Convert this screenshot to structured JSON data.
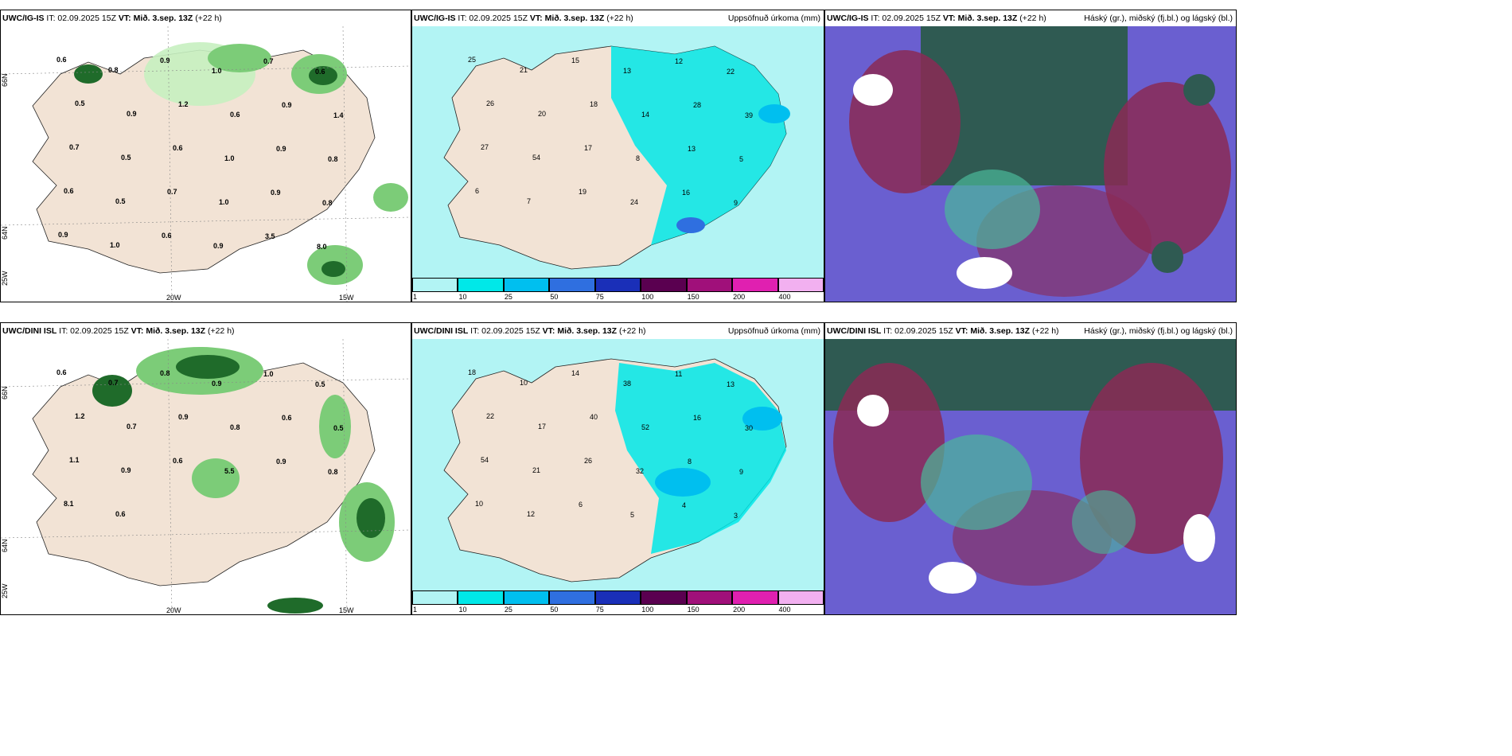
{
  "panels": {
    "p1": {
      "model": "UWC/IG-IS",
      "it": "IT: 02.09.2025 15Z",
      "vt_label": "VT:",
      "vt": "Mið. 3.sep. 13Z",
      "lead": "(+22 h)",
      "right": ""
    },
    "p2": {
      "model": "UWC/IG-IS",
      "it": "IT: 02.09.2025 15Z",
      "vt_label": "VT:",
      "vt": "Mið. 3.sep. 13Z",
      "lead": "(+22 h)",
      "right": "Uppsöfnuð úrkoma (mm)"
    },
    "p3": {
      "model": "UWC/IG-IS",
      "it": "IT: 02.09.2025 15Z",
      "vt_label": "VT:",
      "vt": "Mið. 3.sep. 13Z",
      "lead": "(+22 h)",
      "right": "Háský (gr.), miðský (fj.bl.) og lágský (bl.)"
    },
    "p4": {
      "model": "UWC/DINI ISL",
      "it": "IT: 02.09.2025 15Z",
      "vt_label": "VT:",
      "vt": "Mið. 3.sep. 13Z",
      "lead": "(+22 h)",
      "right": ""
    },
    "p5": {
      "model": "UWC/DINI ISL",
      "it": "IT: 02.09.2025 15Z",
      "vt_label": "VT:",
      "vt": "Mið. 3.sep. 13Z",
      "lead": "(+22 h)",
      "right": "Uppsöfnuð úrkoma (mm)"
    },
    "p6": {
      "model": "UWC/DINI ISL",
      "it": "IT: 02.09.2025 15Z",
      "vt_label": "VT:",
      "vt": "Mið. 3.sep. 13Z",
      "lead": "(+22 h)",
      "right": "Háský (gr.), miðský (fj.bl.) og lágský (bl.)"
    }
  },
  "grid_labels": {
    "lat66": "66N",
    "lat64": "64N",
    "lon25": "25W",
    "lon20": "20W",
    "lon15": "15W"
  },
  "colorbar": {
    "ticks": [
      "1",
      "10",
      "25",
      "50",
      "75",
      "100",
      "150",
      "200",
      "400"
    ],
    "colors": [
      "#b2f4f4",
      "#00e8e8",
      "#00bfef",
      "#2f6fe0",
      "#1a2fb8",
      "#5a0050",
      "#a0107a",
      "#e020b0",
      "#f2b0f0"
    ]
  },
  "map_colors": {
    "land": "#f2e3d5",
    "sea": "#ffffff",
    "precip_light": "#c7efc0",
    "precip_mid": "#7ccc78",
    "precip_dark": "#1f6b2a",
    "rain_light": "#b2f4f4",
    "rain_mid": "#00e8e8",
    "cloud_high": "#2f5a52",
    "cloud_mid": "#8a2a55",
    "cloud_low": "#6a5fd0"
  },
  "labels": {
    "p1": [
      "0.6",
      "0.8",
      "0.9",
      "1.0",
      "0.7",
      "0.6",
      "0.5",
      "0.9",
      "1.2",
      "0.6",
      "0.9",
      "1.4",
      "0.7",
      "0.5",
      "0.6",
      "1.0",
      "0.9",
      "0.8",
      "0.6",
      "0.5",
      "0.7",
      "1.0",
      "0.9",
      "0.8",
      "0.9",
      "1.0",
      "0.6",
      "0.9",
      "3.5",
      "8.0"
    ],
    "p2": [
      "25",
      "21",
      "15",
      "13",
      "12",
      "22",
      "26",
      "20",
      "18",
      "14",
      "28",
      "39",
      "27",
      "54",
      "17",
      "8",
      "13",
      "5",
      "6",
      "7",
      "19",
      "24",
      "16",
      "9"
    ],
    "p4": [
      "0.6",
      "0.7",
      "0.8",
      "0.9",
      "1.0",
      "0.5",
      "1.2",
      "0.7",
      "0.9",
      "0.8",
      "0.6",
      "0.5",
      "1.1",
      "0.9",
      "0.6",
      "5.5",
      "0.9",
      "0.8",
      "8.1",
      "0.6"
    ],
    "p5": [
      "18",
      "10",
      "14",
      "38",
      "11",
      "13",
      "22",
      "17",
      "40",
      "52",
      "16",
      "30",
      "54",
      "21",
      "26",
      "32",
      "8",
      "9",
      "10",
      "12",
      "6",
      "5",
      "4",
      "3"
    ]
  }
}
